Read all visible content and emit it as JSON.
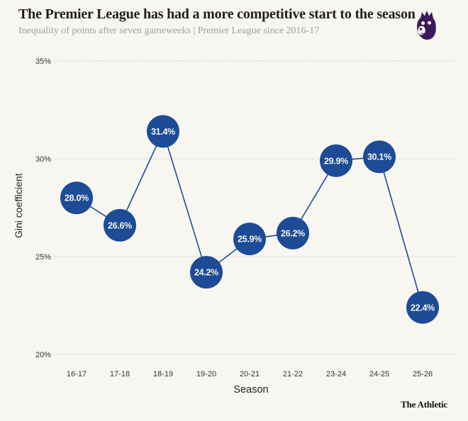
{
  "header": {
    "title": "The Premier League has had a more competitive start to the season",
    "subtitle": "Inequality of points after seven gameweeks | Premier League since 2016-17"
  },
  "footer": {
    "brand": "The Athletic"
  },
  "colors": {
    "background": "#f7f6f1",
    "point_fill": "#1d4b96",
    "point_label": "#f6f5ef",
    "line": "#1d4b96",
    "grid": "#d7d6cf",
    "title": "#221d1f",
    "subtitle": "#a19f98",
    "tick": "#33322f",
    "axis_label": "#222222",
    "brand": "#15120d",
    "logo_purple": "#3d195b"
  },
  "chart_data": {
    "type": "line",
    "title": "The Premier League has had a more competitive start to the season",
    "subtitle": "Inequality of points after seven gameweeks | Premier League since 2016-17",
    "categories": [
      "16-17",
      "17-18",
      "18-19",
      "19-20",
      "20-21",
      "21-22",
      "23-24",
      "24-25",
      "25-26"
    ],
    "values": [
      28.0,
      26.6,
      31.4,
      24.2,
      25.9,
      26.2,
      29.9,
      30.1,
      22.4
    ],
    "point_labels": [
      "28.0%",
      "26.6%",
      "31.4%",
      "24.2%",
      "25.9%",
      "26.2%",
      "29.9%",
      "30.1%",
      "22.4%"
    ],
    "xlabel": "Season",
    "ylabel": "Gini coefficient",
    "ylim": [
      20,
      35
    ],
    "yticks": [
      35,
      30,
      25,
      20
    ],
    "ytick_labels": [
      "35%",
      "30%",
      "25%",
      "20%"
    ],
    "grid": "horizontal-dotted",
    "legend": "none",
    "marker": "filled-circle-with-value-label",
    "source_brand": "The Athletic"
  }
}
